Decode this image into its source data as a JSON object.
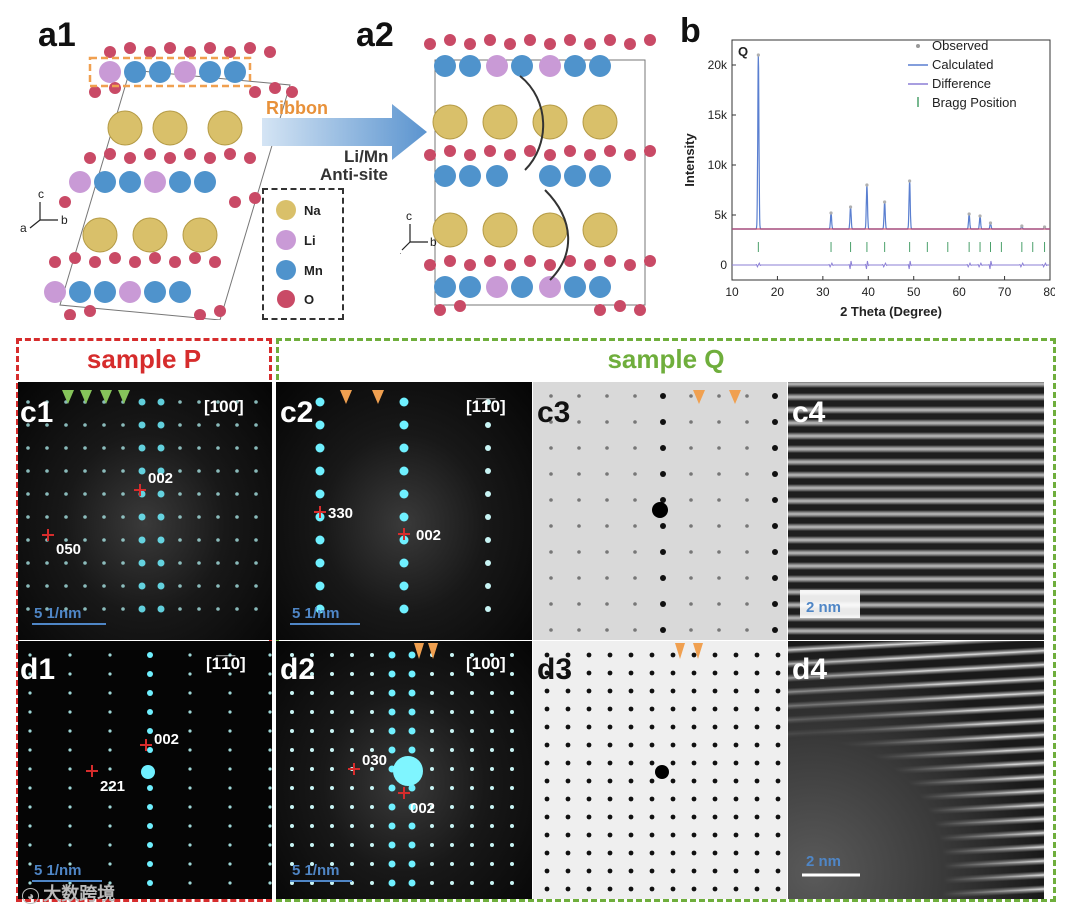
{
  "panels": {
    "a1": "a1",
    "a2": "a2",
    "b": "b",
    "c1": "c1",
    "c2": "c2",
    "c3": "c3",
    "c4": "c4",
    "d1": "d1",
    "d2": "d2",
    "d3": "d3",
    "d4": "d4"
  },
  "arrow_text": {
    "top": "Ribbon",
    "line1": "Li/Mn",
    "line2": "Anti-site"
  },
  "atom_legend": [
    {
      "label": "Na",
      "color": "#d9c06a"
    },
    {
      "label": "Li",
      "color": "#c99ad6"
    },
    {
      "label": "Mn",
      "color": "#4f93cc"
    },
    {
      "label": "O",
      "color": "#c94a66"
    }
  ],
  "axes_labels": {
    "c": "c",
    "a": "a",
    "b": "b"
  },
  "samples": {
    "p": "sample P",
    "q": "sample Q",
    "p_color": "#d62c2c",
    "q_color": "#6fae3c"
  },
  "zone_axes": {
    "c1": "[100]",
    "c2": "[1̅1̅0]",
    "d1": "[1̅1̅0]",
    "d2": "[100]"
  },
  "spots": {
    "c1_a": "002",
    "c1_b": "050",
    "c2_a": "330",
    "c2_b": "002",
    "d1_a": "002",
    "d1_b": "221",
    "d2_a": "030",
    "d2_b": "002"
  },
  "scale_bars": {
    "diff": "5 1/nm",
    "real": "2 nm"
  },
  "watermark": "大数跨境",
  "chart_data": {
    "type": "line",
    "sample_label": "Q",
    "xlabel": "2 Theta (Degree)",
    "ylabel": "Intensity",
    "xlim": [
      10,
      80
    ],
    "ylim": [
      -1500,
      22500
    ],
    "xticks": [
      10,
      20,
      30,
      40,
      50,
      60,
      70,
      80
    ],
    "yticks": [
      0,
      5000,
      10000,
      15000,
      20000
    ],
    "ytick_labels": [
      "0",
      "5k",
      "10k",
      "15k",
      "20k"
    ],
    "legend": [
      "Observed",
      "Calculated",
      "Difference",
      "Bragg Position"
    ],
    "baseline": 3600,
    "peaks": [
      {
        "x": 15.8,
        "y": 21000
      },
      {
        "x": 31.8,
        "y": 5200
      },
      {
        "x": 36.1,
        "y": 5800
      },
      {
        "x": 39.7,
        "y": 8000
      },
      {
        "x": 43.6,
        "y": 6300
      },
      {
        "x": 49.1,
        "y": 8400
      },
      {
        "x": 62.2,
        "y": 5100
      },
      {
        "x": 64.6,
        "y": 4900
      },
      {
        "x": 66.9,
        "y": 4200
      },
      {
        "x": 73.8,
        "y": 3900
      },
      {
        "x": 78.8,
        "y": 3800
      }
    ],
    "bragg_positions": [
      15.8,
      31.8,
      36.1,
      39.7,
      43.6,
      49.1,
      53.0,
      57.5,
      62.2,
      64.6,
      66.9,
      69.3,
      73.8,
      76.2,
      78.8
    ],
    "bragg_level": 1800,
    "difference_level": 0,
    "colors": {
      "observed": "#b0b0b0",
      "calculated": "#5a7fd0",
      "difference": "#8b7fd6",
      "bragg": "#4aa06a",
      "baseline_fit": "#c8385a"
    }
  }
}
